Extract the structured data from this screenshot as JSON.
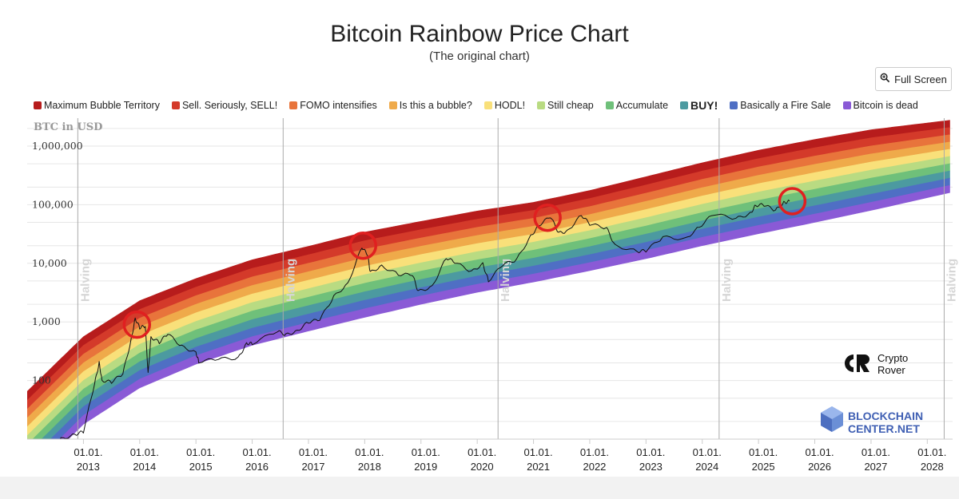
{
  "title": "Bitcoin Rainbow Price Chart",
  "subtitle": "(The original chart)",
  "fullscreen_label": "Full Screen",
  "chart_data": {
    "type": "area",
    "title": "Bitcoin Rainbow Price Chart",
    "subtitle": "(The original chart)",
    "ylabel": "BTC in USD",
    "yscale": "log",
    "ylim": [
      10,
      3000000
    ],
    "xlim": [
      2012.0,
      2028.45
    ],
    "grid": true,
    "legend_position": "top",
    "y_ticks": [
      {
        "value": 100,
        "label": "100"
      },
      {
        "value": 1000,
        "label": "1,000"
      },
      {
        "value": 10000,
        "label": "10,000"
      },
      {
        "value": 100000,
        "label": "100,000"
      },
      {
        "value": 1000000,
        "label": "1,000,000"
      }
    ],
    "x_ticks": [
      {
        "year": 2013,
        "line1": "01.01.",
        "line2": "2013"
      },
      {
        "year": 2014,
        "line1": "01.01.",
        "line2": "2014"
      },
      {
        "year": 2015,
        "line1": "01.01.",
        "line2": "2015"
      },
      {
        "year": 2016,
        "line1": "01.01.",
        "line2": "2016"
      },
      {
        "year": 2017,
        "line1": "01.01.",
        "line2": "2017"
      },
      {
        "year": 2018,
        "line1": "01.01.",
        "line2": "2018"
      },
      {
        "year": 2019,
        "line1": "01.01.",
        "line2": "2019"
      },
      {
        "year": 2020,
        "line1": "01.01.",
        "line2": "2020"
      },
      {
        "year": 2021,
        "line1": "01.01.",
        "line2": "2021"
      },
      {
        "year": 2022,
        "line1": "01.01.",
        "line2": "2022"
      },
      {
        "year": 2023,
        "line1": "01.01.",
        "line2": "2023"
      },
      {
        "year": 2024,
        "line1": "01.01.",
        "line2": "2024"
      },
      {
        "year": 2025,
        "line1": "01.01.",
        "line2": "2025"
      },
      {
        "year": 2026,
        "line1": "01.01.",
        "line2": "2026"
      },
      {
        "year": 2027,
        "line1": "01.01.",
        "line2": "2027"
      },
      {
        "year": 2028,
        "line1": "01.01.",
        "line2": "2028"
      }
    ],
    "halvings": [
      {
        "date": 2012.9,
        "label": "Halving"
      },
      {
        "date": 2016.55,
        "label": "Halving"
      },
      {
        "date": 2020.37,
        "label": "Halving"
      },
      {
        "date": 2024.3,
        "label": "Halving"
      },
      {
        "date": 2028.3,
        "label": "Halving"
      }
    ],
    "bands": [
      {
        "name": "Maximum Bubble Territory",
        "color": "#b71c1c"
      },
      {
        "name": "Sell. Seriously, SELL!",
        "color": "#d43a2a"
      },
      {
        "name": "FOMO intensifies",
        "color": "#e8743b"
      },
      {
        "name": "Is this a bubble?",
        "color": "#efaa4a"
      },
      {
        "name": "HODL!",
        "color": "#f9e07a"
      },
      {
        "name": "Still cheap",
        "color": "#b9db82"
      },
      {
        "name": "Accumulate",
        "color": "#6fc07a"
      },
      {
        "name": "BUY!",
        "color": "#4c9aa0",
        "bold": true
      },
      {
        "name": "Basically a Fire Sale",
        "color": "#4f6fc4"
      },
      {
        "name": "Bitcoin is dead",
        "color": "#8a5ad6"
      }
    ],
    "band_upper_edge": [
      {
        "x": 2012.0,
        "y": 65
      },
      {
        "x": 2013.0,
        "y": 560
      },
      {
        "x": 2014.0,
        "y": 2300
      },
      {
        "x": 2015.0,
        "y": 5500
      },
      {
        "x": 2016.0,
        "y": 11500
      },
      {
        "x": 2017.0,
        "y": 19500
      },
      {
        "x": 2018.0,
        "y": 34000
      },
      {
        "x": 2019.0,
        "y": 52000
      },
      {
        "x": 2020.0,
        "y": 78000
      },
      {
        "x": 2021.0,
        "y": 110000
      },
      {
        "x": 2022.0,
        "y": 175000
      },
      {
        "x": 2023.0,
        "y": 300000
      },
      {
        "x": 2024.0,
        "y": 520000
      },
      {
        "x": 2025.0,
        "y": 850000
      },
      {
        "x": 2026.0,
        "y": 1300000
      },
      {
        "x": 2027.0,
        "y": 1900000
      },
      {
        "x": 2028.45,
        "y": 2800000
      }
    ],
    "band_lower_edge": [
      {
        "x": 2012.0,
        "y": 2
      },
      {
        "x": 2013.0,
        "y": 18
      },
      {
        "x": 2014.0,
        "y": 75
      },
      {
        "x": 2015.0,
        "y": 190
      },
      {
        "x": 2016.0,
        "y": 400
      },
      {
        "x": 2017.0,
        "y": 700
      },
      {
        "x": 2018.0,
        "y": 1200
      },
      {
        "x": 2019.0,
        "y": 2000
      },
      {
        "x": 2020.0,
        "y": 3200
      },
      {
        "x": 2021.0,
        "y": 4800
      },
      {
        "x": 2022.0,
        "y": 7500
      },
      {
        "x": 2023.0,
        "y": 12000
      },
      {
        "x": 2024.0,
        "y": 20000
      },
      {
        "x": 2025.0,
        "y": 32000
      },
      {
        "x": 2026.0,
        "y": 50000
      },
      {
        "x": 2027.0,
        "y": 80000
      },
      {
        "x": 2028.45,
        "y": 165000
      }
    ],
    "price_series": {
      "points": [
        {
          "x": 2012.0,
          "y": 5.5
        },
        {
          "x": 2012.2,
          "y": 5.0
        },
        {
          "x": 2012.45,
          "y": 6.5
        },
        {
          "x": 2012.6,
          "y": 10
        },
        {
          "x": 2012.85,
          "y": 12
        },
        {
          "x": 2013.0,
          "y": 13.5
        },
        {
          "x": 2013.2,
          "y": 90
        },
        {
          "x": 2013.28,
          "y": 200
        },
        {
          "x": 2013.33,
          "y": 100
        },
        {
          "x": 2013.5,
          "y": 95
        },
        {
          "x": 2013.7,
          "y": 130
        },
        {
          "x": 2013.85,
          "y": 500
        },
        {
          "x": 2013.92,
          "y": 1150
        },
        {
          "x": 2014.0,
          "y": 800
        },
        {
          "x": 2014.1,
          "y": 850
        },
        {
          "x": 2014.15,
          "y": 130
        },
        {
          "x": 2014.2,
          "y": 550
        },
        {
          "x": 2014.35,
          "y": 450
        },
        {
          "x": 2014.5,
          "y": 630
        },
        {
          "x": 2014.75,
          "y": 380
        },
        {
          "x": 2015.0,
          "y": 300
        },
        {
          "x": 2015.05,
          "y": 210
        },
        {
          "x": 2015.4,
          "y": 235
        },
        {
          "x": 2015.75,
          "y": 240
        },
        {
          "x": 2015.9,
          "y": 430
        },
        {
          "x": 2016.0,
          "y": 430
        },
        {
          "x": 2016.45,
          "y": 700
        },
        {
          "x": 2016.6,
          "y": 600
        },
        {
          "x": 2016.8,
          "y": 700
        },
        {
          "x": 2017.0,
          "y": 1000
        },
        {
          "x": 2017.2,
          "y": 1100
        },
        {
          "x": 2017.45,
          "y": 2700
        },
        {
          "x": 2017.7,
          "y": 4500
        },
        {
          "x": 2017.95,
          "y": 19000
        },
        {
          "x": 2018.05,
          "y": 14000
        },
        {
          "x": 2018.1,
          "y": 7000
        },
        {
          "x": 2018.3,
          "y": 9000
        },
        {
          "x": 2018.6,
          "y": 6500
        },
        {
          "x": 2018.85,
          "y": 6400
        },
        {
          "x": 2018.95,
          "y": 3300
        },
        {
          "x": 2019.2,
          "y": 4000
        },
        {
          "x": 2019.45,
          "y": 12500
        },
        {
          "x": 2019.6,
          "y": 10500
        },
        {
          "x": 2019.9,
          "y": 7200
        },
        {
          "x": 2020.1,
          "y": 9800
        },
        {
          "x": 2020.2,
          "y": 5000
        },
        {
          "x": 2020.45,
          "y": 9500
        },
        {
          "x": 2020.7,
          "y": 11500
        },
        {
          "x": 2020.95,
          "y": 29000
        },
        {
          "x": 2021.1,
          "y": 45000
        },
        {
          "x": 2021.3,
          "y": 63000
        },
        {
          "x": 2021.45,
          "y": 33000
        },
        {
          "x": 2021.6,
          "y": 35000
        },
        {
          "x": 2021.85,
          "y": 67000
        },
        {
          "x": 2022.0,
          "y": 47000
        },
        {
          "x": 2022.3,
          "y": 40000
        },
        {
          "x": 2022.45,
          "y": 20000
        },
        {
          "x": 2022.85,
          "y": 16000
        },
        {
          "x": 2023.0,
          "y": 16500
        },
        {
          "x": 2023.3,
          "y": 28000
        },
        {
          "x": 2023.7,
          "y": 26000
        },
        {
          "x": 2023.95,
          "y": 42000
        },
        {
          "x": 2024.2,
          "y": 70000
        },
        {
          "x": 2024.6,
          "y": 58000
        },
        {
          "x": 2024.85,
          "y": 70000
        },
        {
          "x": 2024.95,
          "y": 98000
        },
        {
          "x": 2025.1,
          "y": 100000
        },
        {
          "x": 2025.3,
          "y": 80000
        },
        {
          "x": 2025.45,
          "y": 108000
        },
        {
          "x": 2025.55,
          "y": 115000
        }
      ]
    },
    "highlight_circles": [
      {
        "x": 2013.95,
        "y": 900
      },
      {
        "x": 2017.97,
        "y": 20000
      },
      {
        "x": 2021.25,
        "y": 60000
      },
      {
        "x": 2025.6,
        "y": 115000
      }
    ]
  },
  "watermarks": {
    "crypto_rover_line1": "Crypto",
    "crypto_rover_line2": "Rover",
    "blockchain_center_line1": "BLOCKCHAIN",
    "blockchain_center_line2": "CENTER",
    "blockchain_center_suffix": ".NET"
  }
}
